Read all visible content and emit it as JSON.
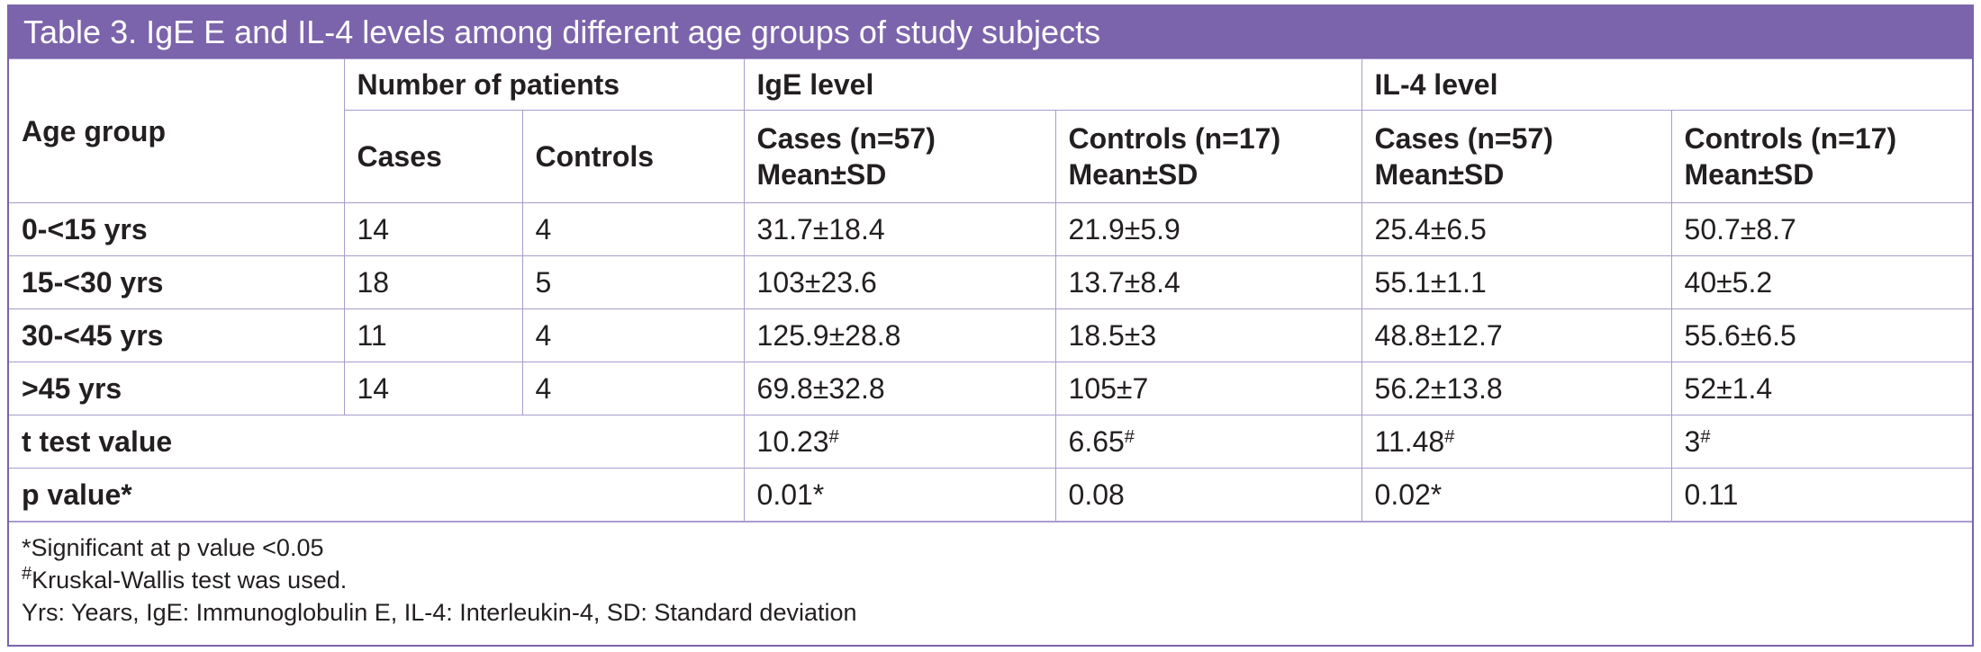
{
  "title": "Table 3. IgE E and IL-4 levels among different age groups of study subjects",
  "headers": {
    "age_group": "Age group",
    "number_of_patients": "Number of patients",
    "ige_level": "IgE level",
    "il4_level": "IL-4 level",
    "cases": "Cases",
    "controls": "Controls",
    "ige_cases_l1": "Cases (n=57)",
    "ige_cases_l2": "Mean±SD",
    "ige_controls_l1": "Controls (n=17)",
    "ige_controls_l2": "Mean±SD",
    "il4_cases_l1": "Cases (n=57)",
    "il4_cases_l2": "Mean±SD",
    "il4_controls_l1": "Controls (n=17)",
    "il4_controls_l2": "Mean±SD"
  },
  "rows": [
    {
      "age": "0-<15 yrs",
      "cases": "14",
      "controls": "4",
      "ige_cases": "31.7±18.4",
      "ige_controls": "21.9±5.9",
      "il4_cases": "25.4±6.5",
      "il4_controls": "50.7±8.7"
    },
    {
      "age": "15-<30 yrs",
      "cases": "18",
      "controls": "5",
      "ige_cases": "103±23.6",
      "ige_controls": "13.7±8.4",
      "il4_cases": "55.1±1.1",
      "il4_controls": "40±5.2"
    },
    {
      "age": "30-<45 yrs",
      "cases": "11",
      "controls": "4",
      "ige_cases": "125.9±28.8",
      "ige_controls": "18.5±3",
      "il4_cases": "48.8±12.7",
      "il4_controls": "55.6±6.5"
    },
    {
      "age": ">45 yrs",
      "cases": "14",
      "controls": "4",
      "ige_cases": "69.8±32.8",
      "ige_controls": "105±7",
      "il4_cases": "56.2±13.8",
      "il4_controls": "52±1.4"
    }
  ],
  "ttest": {
    "label": "t test value",
    "ige_cases": "10.23",
    "ige_controls": "6.65",
    "il4_cases": "11.48",
    "il4_controls": "3",
    "mark": "#"
  },
  "pvalue": {
    "label": "p value*",
    "ige_cases": "0.01*",
    "ige_controls": "0.08",
    "il4_cases": "0.02*",
    "il4_controls": "0.11"
  },
  "footnotes": {
    "sig": "*Significant at p value <0.05",
    "kw_mark": "#",
    "kw": "Kruskal-Wallis test was used.",
    "abbrev": "Yrs: Years, IgE: Immunoglobulin E, IL-4: Interleukin-4, SD: Standard deviation"
  },
  "colors": {
    "header_bg": "#7b64ab",
    "border": "#a99bcc",
    "text": "#231f20"
  }
}
